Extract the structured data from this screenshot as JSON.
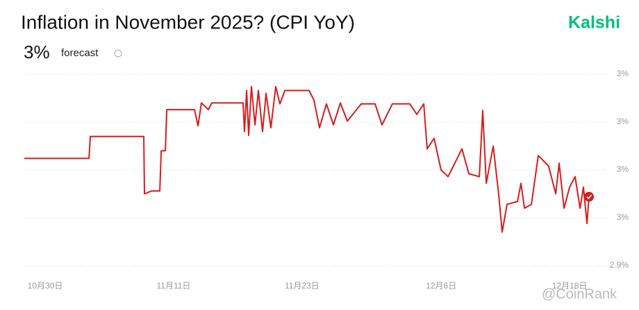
{
  "chart_data": {
    "type": "line",
    "title": "Inflation in November 2025? (CPI YoY)",
    "headline": "3%",
    "headline_note": "forecast",
    "brand": "Kalshi",
    "watermark": "@CoinRank",
    "series": [
      {
        "name": "CPI YoY",
        "color": "#d91b1b",
        "x": [
          -1.95,
          4.09,
          4.22,
          9.21,
          9.28,
          9.93,
          10.71,
          10.84,
          11.23,
          11.36,
          13.95,
          14.28,
          14.6,
          15.25,
          15.57,
          18.49,
          18.62,
          18.82,
          19.01,
          19.27,
          19.6,
          19.92,
          20.31,
          20.64,
          21.09,
          21.54,
          21.93,
          22.39,
          24.66,
          25.11,
          25.63,
          26.28,
          26.93,
          27.58,
          28.23,
          29.53,
          30.82,
          31.47,
          32.44,
          34.07,
          34.72,
          35.37,
          35.69,
          36.34,
          36.99,
          37.64,
          38.94,
          39.58,
          40.56,
          40.88,
          41.21,
          41.86,
          42.37,
          42.7,
          43.15,
          44.13,
          44.45,
          44.78,
          45.43,
          46.07,
          47.04,
          47.7,
          48.02,
          48.48,
          49.0,
          49.51,
          49.97,
          50.29,
          50.62,
          50.81
        ],
        "values": [
          3.012,
          3.012,
          3.035,
          3.035,
          2.975,
          2.978,
          2.978,
          3.02,
          3.02,
          3.063,
          3.063,
          3.046,
          3.07,
          3.063,
          3.07,
          3.07,
          3.04,
          3.083,
          3.036,
          3.087,
          3.047,
          3.083,
          3.04,
          3.08,
          3.044,
          3.087,
          3.069,
          3.083,
          3.083,
          3.073,
          3.044,
          3.069,
          3.047,
          3.07,
          3.051,
          3.069,
          3.069,
          3.047,
          3.069,
          3.069,
          3.058,
          3.069,
          3.022,
          3.033,
          3.0,
          2.993,
          3.022,
          2.996,
          2.993,
          3.062,
          2.986,
          3.025,
          2.975,
          2.935,
          2.964,
          2.967,
          2.986,
          2.96,
          2.964,
          3.015,
          3.004,
          2.975,
          3.007,
          2.96,
          2.982,
          2.993,
          2.96,
          2.982,
          2.944,
          2.972
        ]
      }
    ],
    "xlim": [
      -1.95,
      50.81
    ],
    "xticks": [
      {
        "value": 0,
        "label": "10月30日"
      },
      {
        "value": 12,
        "label": "11月11日"
      },
      {
        "value": 24,
        "label": "11月23日"
      },
      {
        "value": 37,
        "label": "12月6日"
      },
      {
        "value": 49,
        "label": "12月18日"
      }
    ],
    "ylim": [
      2.9,
      3.1
    ],
    "yticks": [
      {
        "value": 3.1,
        "label": "3%"
      },
      {
        "value": 3.05,
        "label": "3%"
      },
      {
        "value": 3.0,
        "label": "3%"
      },
      {
        "value": 2.95,
        "label": "3%"
      },
      {
        "value": 2.9,
        "label": "2.9%"
      }
    ],
    "grid": true
  }
}
